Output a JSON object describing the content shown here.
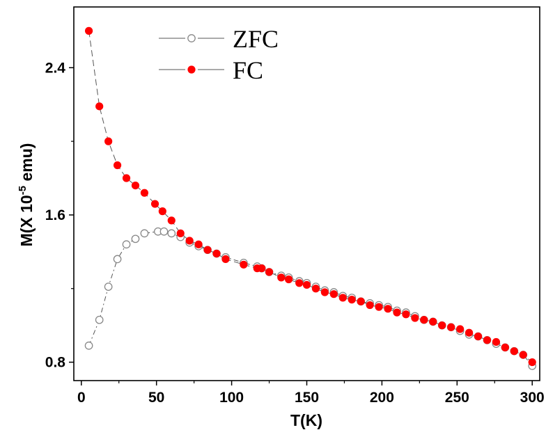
{
  "chart_data": {
    "type": "scatter",
    "xlabel": "T(K)",
    "ylabel_parts": {
      "main": "M(X 10",
      "sup": "-5",
      "tail": " emu)"
    },
    "xlim": [
      -5,
      305
    ],
    "ylim": [
      0.7,
      2.73
    ],
    "xticks": [
      0,
      50,
      100,
      150,
      200,
      250,
      300
    ],
    "yticks": [
      0.8,
      1.6,
      2.4
    ],
    "ytick_labels": [
      "0.8",
      "1.6",
      "2.4"
    ],
    "grid": false,
    "legend_position": "top-center",
    "series": [
      {
        "name": "ZFC",
        "marker": "open-circle",
        "color": "#888888",
        "line": "dash-dot",
        "x": [
          5,
          12,
          18,
          24,
          30,
          36,
          42,
          51,
          55,
          60,
          66,
          72,
          78,
          84,
          90,
          96,
          108,
          117,
          120,
          125,
          133,
          138,
          145,
          150,
          156,
          162,
          168,
          174,
          180,
          186,
          192,
          198,
          204,
          210,
          216,
          222,
          228,
          234,
          240,
          246,
          252,
          258,
          264,
          270,
          276,
          282,
          288,
          294,
          300
        ],
        "y": [
          0.89,
          1.03,
          1.21,
          1.36,
          1.44,
          1.47,
          1.5,
          1.51,
          1.51,
          1.5,
          1.48,
          1.45,
          1.43,
          1.41,
          1.39,
          1.37,
          1.34,
          1.32,
          1.31,
          1.29,
          1.27,
          1.26,
          1.24,
          1.23,
          1.21,
          1.19,
          1.18,
          1.16,
          1.15,
          1.13,
          1.12,
          1.11,
          1.1,
          1.08,
          1.07,
          1.05,
          1.03,
          1.02,
          1.0,
          0.99,
          0.97,
          0.95,
          0.94,
          0.92,
          0.9,
          0.88,
          0.86,
          0.84,
          0.78
        ]
      },
      {
        "name": "FC",
        "marker": "filled-circle",
        "color": "#ff0000",
        "line": "dash",
        "x": [
          5,
          12,
          18,
          24,
          30,
          36,
          42,
          49,
          54,
          60,
          66,
          72,
          78,
          84,
          90,
          96,
          108,
          117,
          120,
          125,
          133,
          138,
          145,
          150,
          156,
          162,
          168,
          174,
          180,
          186,
          192,
          198,
          204,
          210,
          216,
          222,
          228,
          234,
          240,
          246,
          252,
          258,
          264,
          270,
          276,
          282,
          288,
          294,
          300
        ],
        "y": [
          2.6,
          2.19,
          2.0,
          1.87,
          1.8,
          1.76,
          1.72,
          1.66,
          1.62,
          1.57,
          1.5,
          1.46,
          1.44,
          1.41,
          1.39,
          1.36,
          1.33,
          1.31,
          1.31,
          1.29,
          1.26,
          1.25,
          1.23,
          1.22,
          1.2,
          1.18,
          1.17,
          1.15,
          1.14,
          1.13,
          1.11,
          1.1,
          1.09,
          1.07,
          1.06,
          1.04,
          1.03,
          1.02,
          1.0,
          0.99,
          0.98,
          0.96,
          0.94,
          0.92,
          0.91,
          0.88,
          0.86,
          0.84,
          0.8
        ]
      }
    ]
  }
}
